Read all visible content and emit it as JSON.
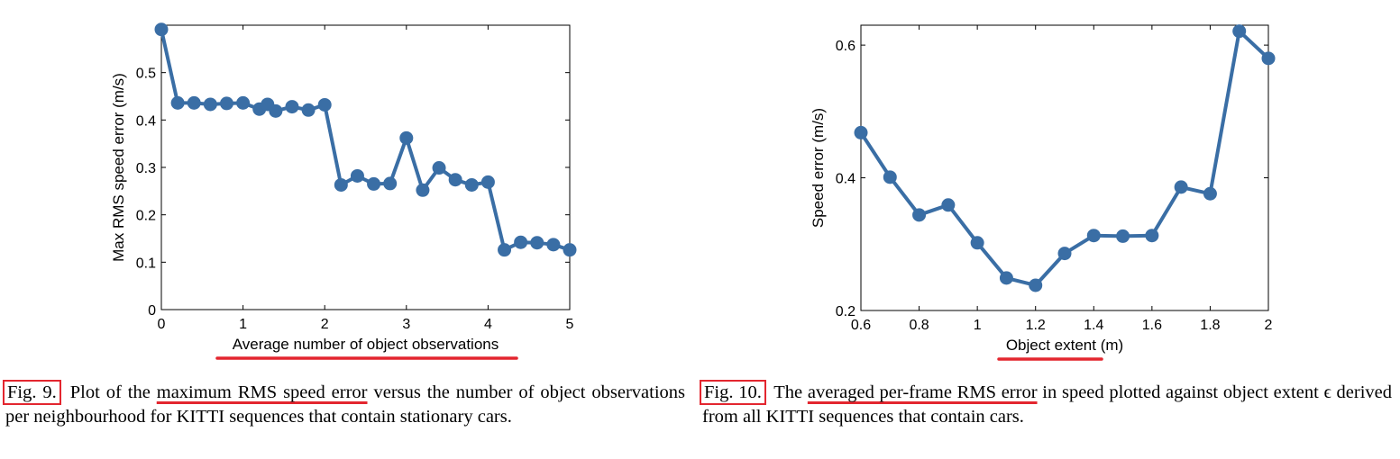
{
  "colors": {
    "series": "#3a6ea5",
    "highlight": "#e3262f"
  },
  "chart_data": [
    {
      "type": "line",
      "xlabel": "Average number of object observations",
      "ylabel": "Max RMS speed error (m/s)",
      "xlim": [
        0,
        5
      ],
      "ylim": [
        0,
        0.6
      ],
      "xticks": [
        "0",
        "1",
        "2",
        "3",
        "4",
        "5"
      ],
      "yticks": [
        "0",
        "0.1",
        "0.2",
        "0.3",
        "0.4",
        "0.5"
      ],
      "x": [
        0.0,
        0.2,
        0.4,
        0.6,
        0.8,
        1.0,
        1.2,
        1.3,
        1.4,
        1.6,
        1.8,
        2.0,
        2.2,
        2.4,
        2.6,
        2.8,
        3.0,
        3.2,
        3.4,
        3.6,
        3.8,
        4.0,
        4.2,
        4.4,
        4.6,
        4.8,
        5.0
      ],
      "series": [
        {
          "values": [
            0.591,
            0.436,
            0.436,
            0.433,
            0.435,
            0.436,
            0.423,
            0.433,
            0.419,
            0.428,
            0.421,
            0.432,
            0.263,
            0.282,
            0.265,
            0.266,
            0.362,
            0.252,
            0.299,
            0.274,
            0.263,
            0.269,
            0.126,
            0.142,
            0.141,
            0.137,
            0.126
          ]
        }
      ],
      "grid": false,
      "highlight_xlabel": true
    },
    {
      "type": "line",
      "xlabel": "Object extent (m)",
      "ylabel": "Speed error (m/s)",
      "xlim": [
        0.6,
        2.0
      ],
      "ylim": [
        0.2,
        0.63
      ],
      "xticks": [
        "0.6",
        "0.8",
        "1",
        "1.2",
        "1.4",
        "1.6",
        "1.8",
        "2"
      ],
      "yticks": [
        "0.2",
        "0.4",
        "0.6"
      ],
      "x": [
        0.6,
        0.7,
        0.8,
        0.9,
        1.0,
        1.1,
        1.2,
        1.3,
        1.4,
        1.5,
        1.6,
        1.7,
        1.8,
        1.9,
        2.0
      ],
      "series": [
        {
          "values": [
            0.468,
            0.401,
            0.344,
            0.359,
            0.302,
            0.249,
            0.238,
            0.286,
            0.313,
            0.312,
            0.313,
            0.386,
            0.376,
            0.621,
            0.58
          ]
        }
      ],
      "grid": false,
      "highlight_xlabel": true
    }
  ],
  "captions": [
    {
      "label": "Fig. 9.",
      "before": "Plot of the",
      "highlight": "maximum RMS speed error",
      "after": "versus the number of object observations per neighbourhood for KITTI sequences that contain stationary cars."
    },
    {
      "label": "Fig. 10.",
      "before": "The",
      "highlight": "averaged per-frame RMS error",
      "after": "in speed plotted against object extent ϵ derived from all KITTI sequences that contain cars."
    }
  ]
}
